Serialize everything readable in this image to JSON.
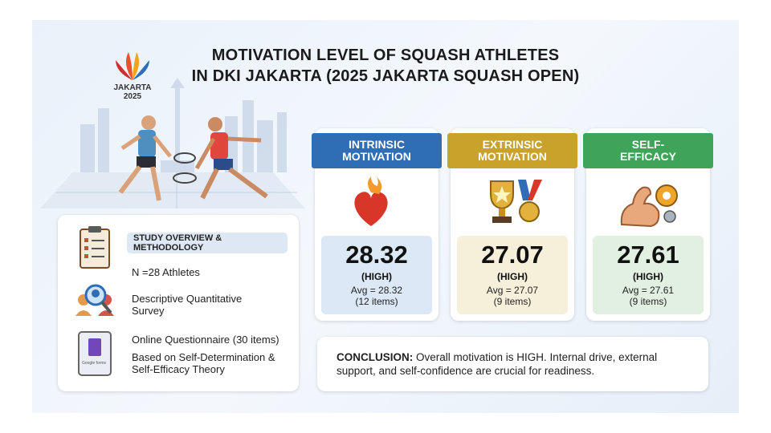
{
  "logo": {
    "name": "JAKARTA",
    "year": "2025"
  },
  "header": {
    "title_line1": "MOTIVATION LEVEL OF SQUASH ATHLETES",
    "title_line2": "IN DKI JAKARTA (2025 JAKARTA SQUASH OPEN)"
  },
  "overview": {
    "heading": "STUDY OVERVIEW & METHODOLOGY",
    "items": [
      "N =28 Athletes",
      "Descriptive Quantitative Survey",
      "Online Questionnaire (30 items)",
      "Based on Self-Determination & Self-Efficacy Theory"
    ],
    "form_icon_label": "Google forms"
  },
  "cards": [
    {
      "title": "INTRINSIC MOTIVATION",
      "score": "28.32",
      "level": "(HIGH)",
      "avg": "Avg = 28.32",
      "items": "(12 items)"
    },
    {
      "title": "EXTRINSIC MOTIVATION",
      "score": "27.07",
      "level": "(HIGH)",
      "avg": "Avg = 27.07",
      "items": "(9 items)"
    },
    {
      "title": "SELF-EFFICACY",
      "score": "27.61",
      "level": "(HIGH)",
      "avg": "Avg = 27.61",
      "items": "(9 items)"
    }
  ],
  "conclusion": {
    "label": "CONCLUSION:",
    "text": "Overall motivation is HIGH. Internal drive, external support, and self-confidence are crucial for readiness."
  }
}
